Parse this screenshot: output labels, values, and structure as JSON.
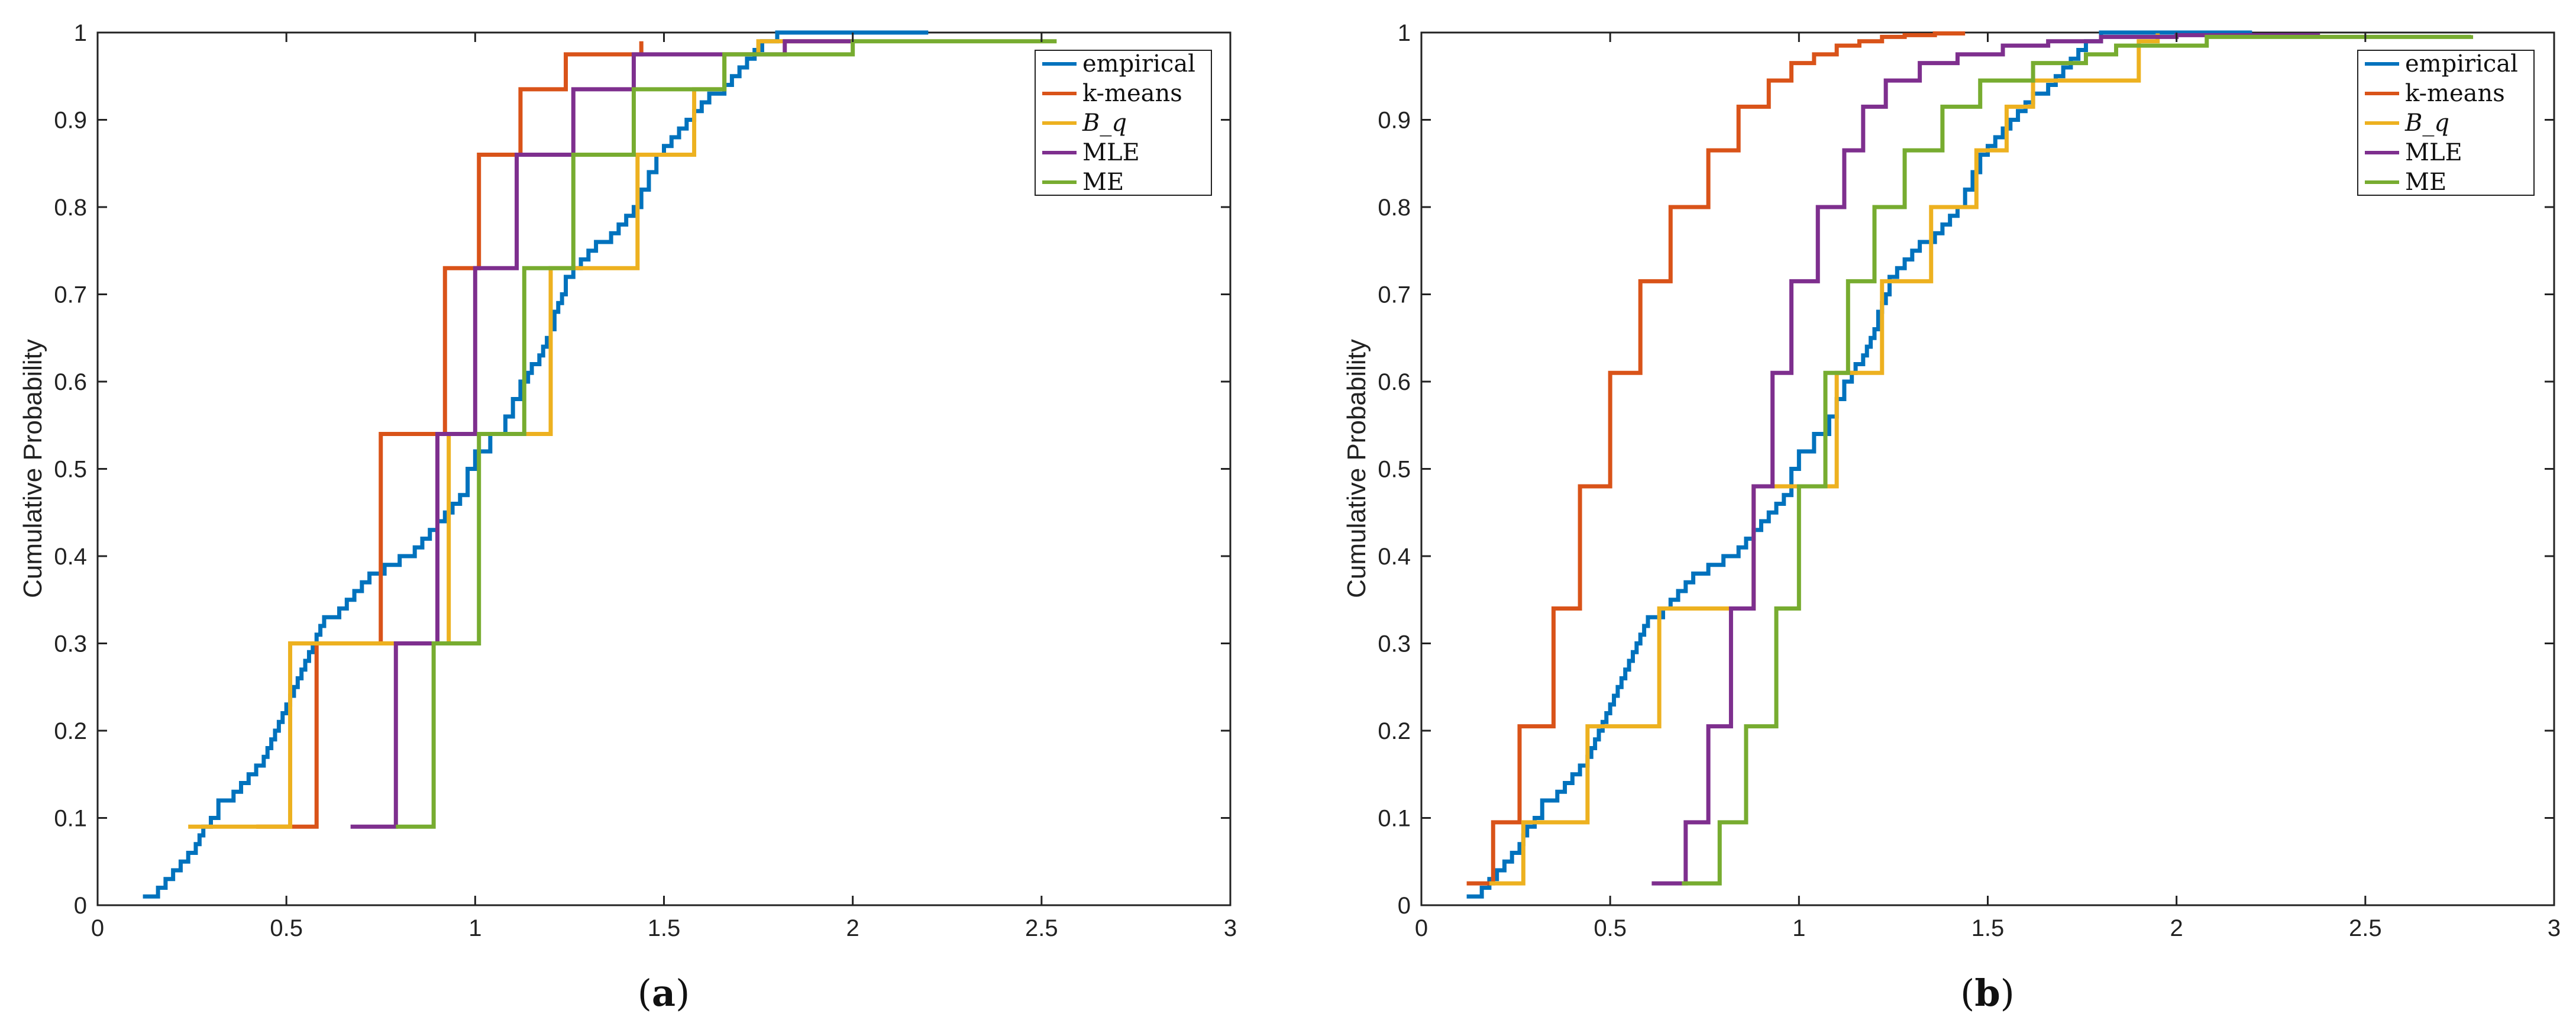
{
  "chart_data": [
    {
      "panel_id": "a",
      "caption_letter": "a",
      "type": "line",
      "title": "",
      "xlabel": "",
      "ylabel": "Cumulative Probability",
      "xlim": [
        0,
        3
      ],
      "ylim": [
        0,
        1
      ],
      "xticks": [
        0,
        0.5,
        1,
        1.5,
        2,
        2.5,
        3
      ],
      "xtick_labels": [
        "0",
        "0.5",
        "1",
        "1.5",
        "2",
        "2.5",
        "3"
      ],
      "yticks": [
        0,
        0.1,
        0.2,
        0.3,
        0.4,
        0.5,
        0.6,
        0.7,
        0.8,
        0.9,
        1
      ],
      "ytick_labels": [
        "0",
        "0.1",
        "0.2",
        "0.3",
        "0.4",
        "0.5",
        "0.6",
        "0.7",
        "0.8",
        "0.9",
        "1"
      ],
      "legend_position": "top-right",
      "series": [
        {
          "name": "empirical",
          "color": "#0072BD",
          "x": [
            0.12,
            0.16,
            0.18,
            0.2,
            0.22,
            0.24,
            0.26,
            0.27,
            0.28,
            0.3,
            0.32,
            0.36,
            0.38,
            0.4,
            0.42,
            0.44,
            0.45,
            0.46,
            0.47,
            0.48,
            0.49,
            0.5,
            0.51,
            0.52,
            0.53,
            0.54,
            0.55,
            0.56,
            0.57,
            0.58,
            0.59,
            0.6,
            0.64,
            0.66,
            0.68,
            0.7,
            0.72,
            0.74,
            0.76,
            0.8,
            0.84,
            0.86,
            0.88,
            0.9,
            0.92,
            0.94,
            0.96,
            0.98,
            1.0,
            1.04,
            1.08,
            1.1,
            1.12,
            1.14,
            1.15,
            1.17,
            1.18,
            1.19,
            1.2,
            1.21,
            1.22,
            1.23,
            1.24,
            1.26,
            1.28,
            1.3,
            1.32,
            1.36,
            1.38,
            1.4,
            1.42,
            1.44,
            1.46,
            1.48,
            1.5,
            1.52,
            1.54,
            1.56,
            1.58,
            1.6,
            1.62,
            1.66,
            1.68,
            1.7,
            1.72,
            1.74,
            1.76,
            1.8,
            1.9,
            2.2
          ],
          "y": [
            0.01,
            0.02,
            0.03,
            0.04,
            0.05,
            0.06,
            0.07,
            0.08,
            0.09,
            0.1,
            0.12,
            0.13,
            0.14,
            0.15,
            0.16,
            0.17,
            0.18,
            0.19,
            0.2,
            0.21,
            0.22,
            0.23,
            0.24,
            0.25,
            0.26,
            0.27,
            0.28,
            0.29,
            0.3,
            0.31,
            0.32,
            0.33,
            0.34,
            0.35,
            0.36,
            0.37,
            0.38,
            0.38,
            0.39,
            0.4,
            0.41,
            0.42,
            0.43,
            0.44,
            0.45,
            0.46,
            0.47,
            0.5,
            0.52,
            0.54,
            0.56,
            0.58,
            0.6,
            0.61,
            0.62,
            0.63,
            0.64,
            0.65,
            0.66,
            0.68,
            0.69,
            0.7,
            0.72,
            0.73,
            0.74,
            0.75,
            0.76,
            0.77,
            0.78,
            0.79,
            0.8,
            0.82,
            0.84,
            0.86,
            0.87,
            0.88,
            0.89,
            0.9,
            0.91,
            0.92,
            0.93,
            0.94,
            0.95,
            0.96,
            0.97,
            0.98,
            0.99,
            1.0,
            1.0,
            1.0
          ]
        },
        {
          "name": "k-means",
          "color": "#D95319",
          "x": [
            0.42,
            0.58,
            0.75,
            0.92,
            1.01,
            1.12,
            1.24,
            1.44
          ],
          "y": [
            0.09,
            0.3,
            0.54,
            0.73,
            0.86,
            0.935,
            0.975,
            0.99
          ]
        },
        {
          "name": "B_q",
          "color": "#EDB120",
          "x": [
            0.24,
            0.51,
            0.93,
            1.2,
            1.43,
            1.58,
            1.66,
            1.75,
            2.0
          ],
          "y": [
            0.09,
            0.3,
            0.54,
            0.73,
            0.86,
            0.935,
            0.975,
            0.99,
            0.99
          ]
        },
        {
          "name": "MLE",
          "color": "#7E2F8E",
          "x": [
            0.67,
            0.79,
            0.9,
            1.0,
            1.11,
            1.26,
            1.42,
            1.82,
            2.0
          ],
          "y": [
            0.09,
            0.3,
            0.54,
            0.73,
            0.86,
            0.935,
            0.975,
            0.99,
            0.99
          ]
        },
        {
          "name": "ME",
          "color": "#77AC30",
          "x": [
            0.79,
            0.89,
            1.01,
            1.13,
            1.26,
            1.42,
            1.66,
            2.0,
            2.54
          ],
          "y": [
            0.09,
            0.3,
            0.54,
            0.73,
            0.86,
            0.935,
            0.975,
            0.99,
            0.99
          ]
        }
      ]
    },
    {
      "panel_id": "b",
      "caption_letter": "b",
      "type": "line",
      "title": "",
      "xlabel": "",
      "ylabel": "Cumulative Probability",
      "xlim": [
        0,
        3
      ],
      "ylim": [
        0,
        1
      ],
      "xticks": [
        0,
        0.5,
        1,
        1.5,
        2,
        2.5,
        3
      ],
      "xtick_labels": [
        "0",
        "0.5",
        "1",
        "1.5",
        "2",
        "2.5",
        "3"
      ],
      "yticks": [
        0,
        0.1,
        0.2,
        0.3,
        0.4,
        0.5,
        0.6,
        0.7,
        0.8,
        0.9,
        1
      ],
      "ytick_labels": [
        "0",
        "0.1",
        "0.2",
        "0.3",
        "0.4",
        "0.5",
        "0.6",
        "0.7",
        "0.8",
        "0.9",
        "1"
      ],
      "legend_position": "top-right",
      "series": [
        {
          "name": "empirical",
          "color": "#0072BD",
          "x": [
            0.12,
            0.16,
            0.18,
            0.2,
            0.22,
            0.24,
            0.26,
            0.27,
            0.28,
            0.3,
            0.32,
            0.36,
            0.38,
            0.4,
            0.42,
            0.44,
            0.45,
            0.46,
            0.47,
            0.48,
            0.49,
            0.5,
            0.51,
            0.52,
            0.53,
            0.54,
            0.55,
            0.56,
            0.57,
            0.58,
            0.59,
            0.6,
            0.64,
            0.66,
            0.68,
            0.7,
            0.72,
            0.74,
            0.76,
            0.8,
            0.84,
            0.86,
            0.88,
            0.9,
            0.92,
            0.94,
            0.96,
            0.98,
            1.0,
            1.04,
            1.08,
            1.1,
            1.12,
            1.14,
            1.15,
            1.17,
            1.18,
            1.19,
            1.2,
            1.21,
            1.22,
            1.23,
            1.24,
            1.26,
            1.28,
            1.3,
            1.32,
            1.36,
            1.38,
            1.4,
            1.42,
            1.44,
            1.46,
            1.48,
            1.5,
            1.52,
            1.54,
            1.56,
            1.58,
            1.6,
            1.62,
            1.66,
            1.68,
            1.7,
            1.72,
            1.74,
            1.76,
            1.8,
            1.9,
            2.2
          ],
          "y": [
            0.01,
            0.02,
            0.03,
            0.04,
            0.05,
            0.06,
            0.07,
            0.08,
            0.09,
            0.1,
            0.12,
            0.13,
            0.14,
            0.15,
            0.16,
            0.17,
            0.18,
            0.19,
            0.2,
            0.21,
            0.22,
            0.23,
            0.24,
            0.25,
            0.26,
            0.27,
            0.28,
            0.29,
            0.3,
            0.31,
            0.32,
            0.33,
            0.34,
            0.35,
            0.36,
            0.37,
            0.38,
            0.38,
            0.39,
            0.4,
            0.41,
            0.42,
            0.43,
            0.44,
            0.45,
            0.46,
            0.47,
            0.5,
            0.52,
            0.54,
            0.56,
            0.58,
            0.6,
            0.61,
            0.62,
            0.63,
            0.64,
            0.65,
            0.66,
            0.68,
            0.69,
            0.7,
            0.72,
            0.73,
            0.74,
            0.75,
            0.76,
            0.77,
            0.78,
            0.79,
            0.8,
            0.82,
            0.84,
            0.86,
            0.87,
            0.88,
            0.89,
            0.9,
            0.91,
            0.92,
            0.93,
            0.94,
            0.95,
            0.96,
            0.97,
            0.98,
            0.99,
            1.0,
            1.0,
            1.0
          ]
        },
        {
          "name": "k-means",
          "color": "#D95319",
          "x": [
            0.12,
            0.19,
            0.26,
            0.35,
            0.42,
            0.5,
            0.58,
            0.66,
            0.76,
            0.84,
            0.92,
            0.98,
            1.04,
            1.1,
            1.16,
            1.22,
            1.28,
            1.36,
            1.44
          ],
          "y": [
            0.025,
            0.095,
            0.205,
            0.34,
            0.48,
            0.61,
            0.715,
            0.8,
            0.865,
            0.915,
            0.945,
            0.965,
            0.975,
            0.985,
            0.99,
            0.995,
            0.997,
            0.999,
            0.999
          ]
        },
        {
          "name": "B_q",
          "color": "#EDB120",
          "x": [
            0.18,
            0.27,
            0.44,
            0.63,
            0.88,
            1.1,
            1.22,
            1.35,
            1.47,
            1.55,
            1.62,
            1.9,
            1.95
          ],
          "y": [
            0.025,
            0.095,
            0.205,
            0.34,
            0.48,
            0.61,
            0.715,
            0.8,
            0.865,
            0.915,
            0.945,
            0.99,
            0.999
          ]
        },
        {
          "name": "MLE",
          "color": "#7E2F8E",
          "x": [
            0.61,
            0.7,
            0.76,
            0.82,
            0.88,
            0.93,
            0.98,
            1.05,
            1.12,
            1.17,
            1.23,
            1.32,
            1.42,
            1.54,
            1.66,
            1.8,
            2.0,
            2.38
          ],
          "y": [
            0.025,
            0.095,
            0.205,
            0.34,
            0.48,
            0.61,
            0.715,
            0.8,
            0.865,
            0.915,
            0.945,
            0.965,
            0.975,
            0.985,
            0.99,
            0.995,
            0.997,
            0.997
          ]
        },
        {
          "name": "ME",
          "color": "#77AC30",
          "x": [
            0.69,
            0.79,
            0.86,
            0.94,
            1.0,
            1.07,
            1.13,
            1.2,
            1.28,
            1.38,
            1.48,
            1.62,
            1.76,
            1.84,
            2.08,
            2.78
          ],
          "y": [
            0.025,
            0.095,
            0.205,
            0.34,
            0.48,
            0.61,
            0.715,
            0.8,
            0.865,
            0.915,
            0.945,
            0.965,
            0.975,
            0.985,
            0.995,
            0.997
          ]
        }
      ]
    }
  ]
}
